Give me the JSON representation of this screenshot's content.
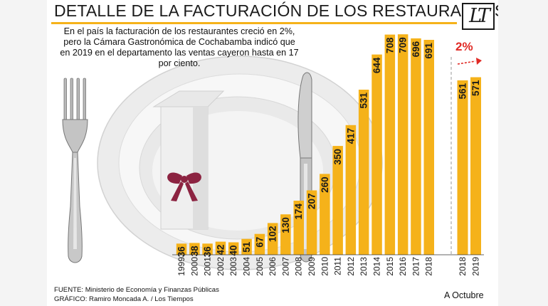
{
  "title": "DETALLE DE LA FACTURACIÓN DE LOS RESTAURANTES",
  "logo_text": "LT",
  "intro": "En el país la facturación de los restaurantes creció en 2%, pero la Cámara Gastronómica de Cochabamba indicó  que en 2019 en el departamento las ventas cayeron  hasta en 17 por ciento.",
  "source": "FUENTE: Ministerio de Economía y Finanzas Públicas",
  "credit": "GRÁFICO: Ramiro Moncada A. / Los Tiempos",
  "colors": {
    "bar": "#f5b21a",
    "accent": "#e02a25",
    "title_rule": "#f5b21a"
  },
  "chart_data": [
    {
      "type": "bar",
      "categories": [
        "1999",
        "2000",
        "2001",
        "2002",
        "2003",
        "2004",
        "2005",
        "2006",
        "2007",
        "2008",
        "2009",
        "2010",
        "2011",
        "2012",
        "2013",
        "2014",
        "2015",
        "2016",
        "2017",
        "2018"
      ],
      "values": [
        36,
        38,
        36,
        42,
        40,
        51,
        67,
        102,
        130,
        174,
        207,
        260,
        350,
        417,
        531,
        644,
        708,
        709,
        696,
        691
      ],
      "ylim": [
        0,
        730
      ],
      "grid": false,
      "legend": "none"
    },
    {
      "type": "bar",
      "categories": [
        "2018",
        "2019"
      ],
      "values": [
        561,
        571
      ],
      "xlabel": "A Octubre",
      "annotation": "2%",
      "ylim": [
        0,
        730
      ],
      "grid": false,
      "legend": "none"
    }
  ]
}
